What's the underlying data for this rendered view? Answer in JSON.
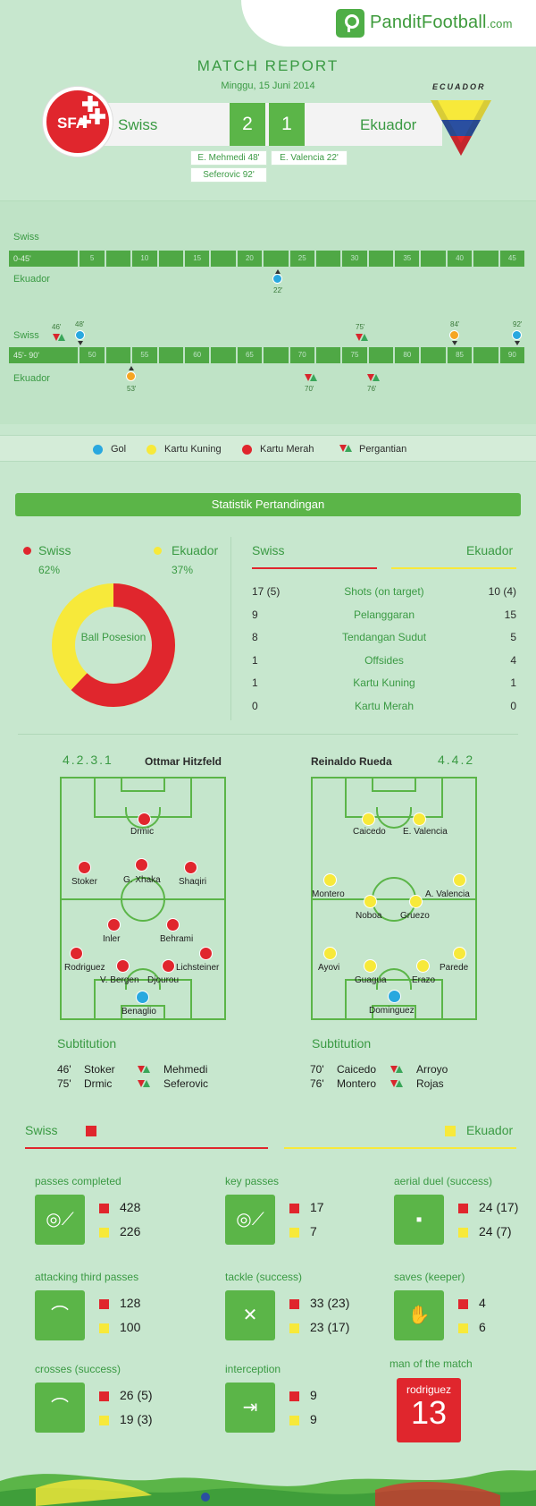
{
  "brand": {
    "name": "PanditFootball",
    "tld": ".com"
  },
  "header": {
    "title": "MATCH REPORT",
    "date": "Minggu, 15 Juni 2014",
    "team_home": "Swiss",
    "team_away": "Ekuador",
    "score_home": "2",
    "score_away": "1",
    "home_crest": "SFA",
    "away_flag_label": "ECUADOR",
    "scorers_home": [
      "E. Mehmedi 48'",
      "Seferovic 92'"
    ],
    "scorers_away": [
      "E. Valencia 22'"
    ]
  },
  "timeline": {
    "home": "Swiss",
    "away": "Ekuador",
    "first_half": "0-45'",
    "second_half": "45'- 90'",
    "ticks1": [
      "5",
      "10",
      "15",
      "20",
      "25",
      "30",
      "35",
      "40",
      "45"
    ],
    "ticks2": [
      "50",
      "55",
      "60",
      "65",
      "70",
      "75",
      "80",
      "85",
      "90"
    ],
    "events1_away": [
      {
        "type": "gol",
        "minute": "22'"
      }
    ],
    "events2_home": [
      {
        "type": "sub",
        "minute": "46'"
      },
      {
        "type": "gol",
        "minute": "48'"
      },
      {
        "type": "sub",
        "minute": "75'"
      },
      {
        "type": "kuning",
        "minute": "84'"
      },
      {
        "type": "gol",
        "minute": "92'"
      }
    ],
    "events2_away": [
      {
        "type": "kuning",
        "minute": "53'"
      },
      {
        "type": "sub",
        "minute": "70'"
      },
      {
        "type": "sub",
        "minute": "76'"
      }
    ]
  },
  "legend": {
    "gol": "Gol",
    "kuning": "Kartu Kuning",
    "merah": "Kartu Merah",
    "sub": "Pergantian"
  },
  "colors": {
    "green": "#5bb548",
    "red": "#e0262d",
    "yellow": "#f7e93a",
    "blue": "#29a8df",
    "orange": "#f5a623"
  },
  "stats_title": "Statistik Pertandingan",
  "possession": {
    "home_label": "Swiss",
    "away_label": "Ekuador",
    "home": "62%",
    "away": "37%",
    "home_value": 62,
    "away_value": 37,
    "center": "Ball Posesion"
  },
  "stats_head": {
    "home": "Swiss",
    "away": "Ekuador"
  },
  "stats": [
    {
      "home": "17 (5)",
      "label": "Shots (on target)",
      "away": "10 (4)"
    },
    {
      "home": "9",
      "label": "Pelanggaran",
      "away": "15"
    },
    {
      "home": "8",
      "label": "Tendangan Sudut",
      "away": "5"
    },
    {
      "home": "1",
      "label": "Offsides",
      "away": "4"
    },
    {
      "home": "1",
      "label": "Kartu Kuning",
      "away": "1"
    },
    {
      "home": "0",
      "label": "Kartu Merah",
      "away": "0"
    }
  ],
  "lineup_home": {
    "formation": "4.2.3.1",
    "coach": "Ottmar Hitzfeld",
    "players": [
      "Drmic",
      "Stoker",
      "G. Xhaka",
      "Shaqiri",
      "Inler",
      "Behrami",
      "Rodriguez",
      "V. Bergen",
      "Djourou",
      "Lichsteiner",
      "Benaglio"
    ]
  },
  "lineup_away": {
    "formation": "4.4.2",
    "coach": "Reinaldo Rueda",
    "players": [
      "Caicedo",
      "E. Valencia",
      "Montero",
      "A. Valencia",
      "Noboa",
      "Gruezo",
      "Ayovi",
      "Guagua",
      "Erazo",
      "Parede",
      "Dominguez"
    ]
  },
  "subs_title": "Subtitution",
  "subs_home": [
    {
      "min": "46'",
      "out": "Stoker",
      "in": "Mehmedi"
    },
    {
      "min": "75'",
      "out": "Drmic",
      "in": "Seferovic"
    }
  ],
  "subs_away": [
    {
      "min": "70'",
      "out": "Caicedo",
      "in": "Arroyo"
    },
    {
      "min": "76'",
      "out": "Montero",
      "in": "Rojas"
    }
  ],
  "kpi_head": {
    "home": "Swiss",
    "away": "Ekuador"
  },
  "kpis": [
    {
      "label": "passes completed",
      "home": "428",
      "away": "226",
      "icon": "passes-icon"
    },
    {
      "label": "key passes",
      "home": "17",
      "away": "7",
      "icon": "key-passes-icon"
    },
    {
      "label": "aerial duel  (success)",
      "home": "24 (17)",
      "away": "24 (7)",
      "icon": "aerial-duel-icon"
    },
    {
      "label": "attacking third passes",
      "home": "128",
      "away": "100",
      "icon": "attacking-third-icon"
    },
    {
      "label": "tackle (success)",
      "home": "33 (23)",
      "away": "23 (17)",
      "icon": "tackle-icon"
    },
    {
      "label": "saves (keeper)",
      "home": "4",
      "away": "6",
      "icon": "glove-icon"
    },
    {
      "label": "crosses (success)",
      "home": "26 (5)",
      "away": "19  (3)",
      "icon": "crosses-icon"
    },
    {
      "label": "interception",
      "home": "9",
      "away": "9",
      "icon": "interception-icon"
    }
  ],
  "motm": {
    "label": "man of the match",
    "name": "rodriguez",
    "number": "13"
  }
}
